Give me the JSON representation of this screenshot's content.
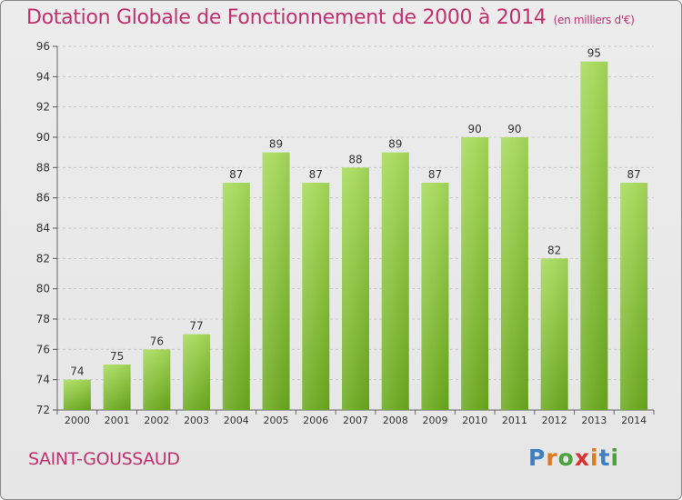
{
  "header": {
    "title": "Dotation Globale de Fonctionnement de 2000 à 2014",
    "unit": "(en milliers d'€)"
  },
  "footer": {
    "commune": "SAINT-GOUSSAUD",
    "logo_text": "Proxiti"
  },
  "colors": {
    "title": "#c0326f",
    "bar_top": "#a6d95a",
    "bar_bottom": "#6aa81e",
    "logo_letters": [
      "#3f7fc4",
      "#e07a1f",
      "#4aa23a",
      "#d9322e",
      "#e07a1f",
      "#3f7fc4",
      "#4aa23a"
    ]
  },
  "chart_data": {
    "type": "bar",
    "title": "Dotation Globale de Fonctionnement de 2000 à 2014",
    "subtitle": "(en milliers d'€)",
    "xlabel": "",
    "ylabel": "",
    "categories": [
      "2000",
      "2001",
      "2002",
      "2003",
      "2004",
      "2005",
      "2006",
      "2007",
      "2008",
      "2009",
      "2010",
      "2011",
      "2012",
      "2013",
      "2014"
    ],
    "values": [
      74,
      75,
      76,
      77,
      87,
      89,
      87,
      88,
      89,
      87,
      90,
      90,
      82,
      95,
      87
    ],
    "ylim": [
      72,
      96
    ],
    "yticks": [
      72,
      74,
      76,
      78,
      80,
      82,
      84,
      86,
      88,
      90,
      92,
      94,
      96
    ],
    "grid": true
  }
}
